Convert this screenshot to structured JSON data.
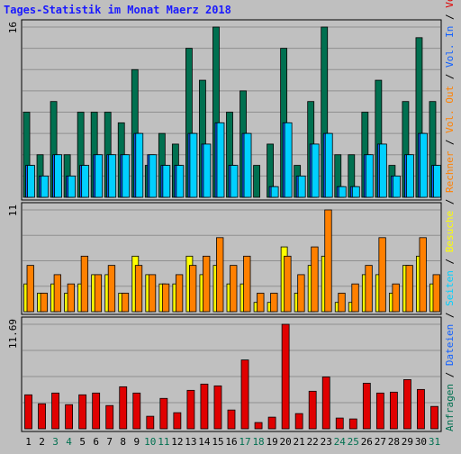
{
  "chart_data": {
    "type": "bar",
    "title": "Tages-Statistik im Monat Maerz 2018",
    "colors": {
      "background": "#bfbfbf",
      "plot": "#c0c0c0",
      "grid": "#8f8f8f",
      "title": "#1a1aff",
      "anfragen": "#007050",
      "dateien": "#1060ff",
      "seiten": "#00d0ff",
      "besuche": "#ffff00",
      "rechner": "#ff8000",
      "volumen": "#e00000",
      "weekend_day": "#007050",
      "weekday": "#000000"
    },
    "days": [
      "1",
      "2",
      "3",
      "4",
      "5",
      "6",
      "7",
      "8",
      "9",
      "10",
      "11",
      "12",
      "13",
      "14",
      "15",
      "16",
      "17",
      "18",
      "19",
      "20",
      "21",
      "22",
      "23",
      "24",
      "25",
      "26",
      "27",
      "28",
      "29",
      "30",
      "31"
    ],
    "weekend_days": [
      3,
      4,
      10,
      11,
      17,
      18,
      24,
      25,
      31
    ],
    "panels": [
      {
        "id": "top",
        "ymax_label": "16",
        "ymax": 16,
        "series": [
          {
            "name": "Anfragen",
            "color": "#007050",
            "values": [
              8,
              4,
              9,
              4,
              8,
              8,
              8,
              7,
              12,
              3,
              6,
              5,
              14,
              11,
              16,
              8,
              10,
              3,
              5,
              14,
              3,
              9,
              16,
              4,
              4,
              8,
              11,
              3,
              9,
              15,
              9
            ]
          },
          {
            "name": "Dateien",
            "color": "#1060ff",
            "values": [
              3,
              2,
              4,
              2,
              3,
              4,
              4,
              4,
              6,
              4,
              3,
              3,
              6,
              5,
              7,
              3,
              6,
              0,
              1,
              7,
              2,
              5,
              6,
              1,
              1,
              4,
              5,
              2,
              4,
              6,
              3
            ]
          },
          {
            "name": "Seiten",
            "color": "#00d0ff",
            "values": [
              3,
              2,
              4,
              2,
              3,
              4,
              4,
              4,
              6,
              4,
              3,
              3,
              6,
              5,
              7,
              3,
              6,
              0,
              1,
              7,
              2,
              5,
              6,
              1,
              1,
              4,
              5,
              2,
              4,
              6,
              3
            ]
          }
        ]
      },
      {
        "id": "middle",
        "ymax_label": "11",
        "ymax": 11,
        "series": [
          {
            "name": "Besuche",
            "color": "#ffff00",
            "values": [
              3,
              2,
              3,
              2,
              3,
              4,
              4,
              2,
              6,
              4,
              3,
              3,
              6,
              4,
              5,
              3,
              3,
              1,
              1,
              7,
              2,
              5,
              6,
              1,
              1,
              4,
              4,
              2,
              5,
              6,
              3
            ]
          },
          {
            "name": "Rechner",
            "color": "#ff8000",
            "values": [
              5,
              2,
              4,
              3,
              6,
              4,
              5,
              2,
              5,
              4,
              3,
              4,
              5,
              6,
              8,
              5,
              6,
              2,
              2,
              6,
              4,
              7,
              11,
              2,
              3,
              5,
              8,
              3,
              5,
              8,
              4
            ]
          }
        ]
      },
      {
        "id": "bottom",
        "ymax_label": "11.69",
        "ymax": 11.69,
        "series": [
          {
            "name": "Volumen",
            "color": "#e00000",
            "values": [
              3.8,
              2.8,
              4.0,
              2.7,
              3.8,
              4.0,
              2.6,
              4.7,
              4.0,
              1.4,
              3.4,
              1.8,
              4.3,
              5.0,
              4.8,
              2.1,
              7.7,
              0.7,
              1.3,
              11.69,
              1.7,
              4.2,
              5.8,
              1.2,
              1.1,
              5.1,
              4.0,
              4.1,
              5.5,
              4.4,
              2.5
            ]
          }
        ]
      }
    ],
    "right_legend": [
      {
        "text": "Anfragen",
        "color": "#007050"
      },
      {
        "text": " / ",
        "color": "#000000"
      },
      {
        "text": "Dateien",
        "color": "#1060ff"
      },
      {
        "text": " / ",
        "color": "#000000"
      },
      {
        "text": "Seiten",
        "color": "#00d0ff"
      },
      {
        "text": " / ",
        "color": "#000000"
      },
      {
        "text": "Besuche",
        "color": "#ffff00"
      },
      {
        "text": " / ",
        "color": "#000000"
      },
      {
        "text": "Rechner",
        "color": "#ff8000"
      },
      {
        "text": " / ",
        "color": "#000000"
      },
      {
        "text": "Vol. Out",
        "color": "#ff8000"
      },
      {
        "text": " / ",
        "color": "#000000"
      },
      {
        "text": "Vol. In",
        "color": "#1060ff"
      },
      {
        "text": " / ",
        "color": "#000000"
      },
      {
        "text": "Volumen",
        "color": "#e00000"
      }
    ],
    "grid": true
  }
}
